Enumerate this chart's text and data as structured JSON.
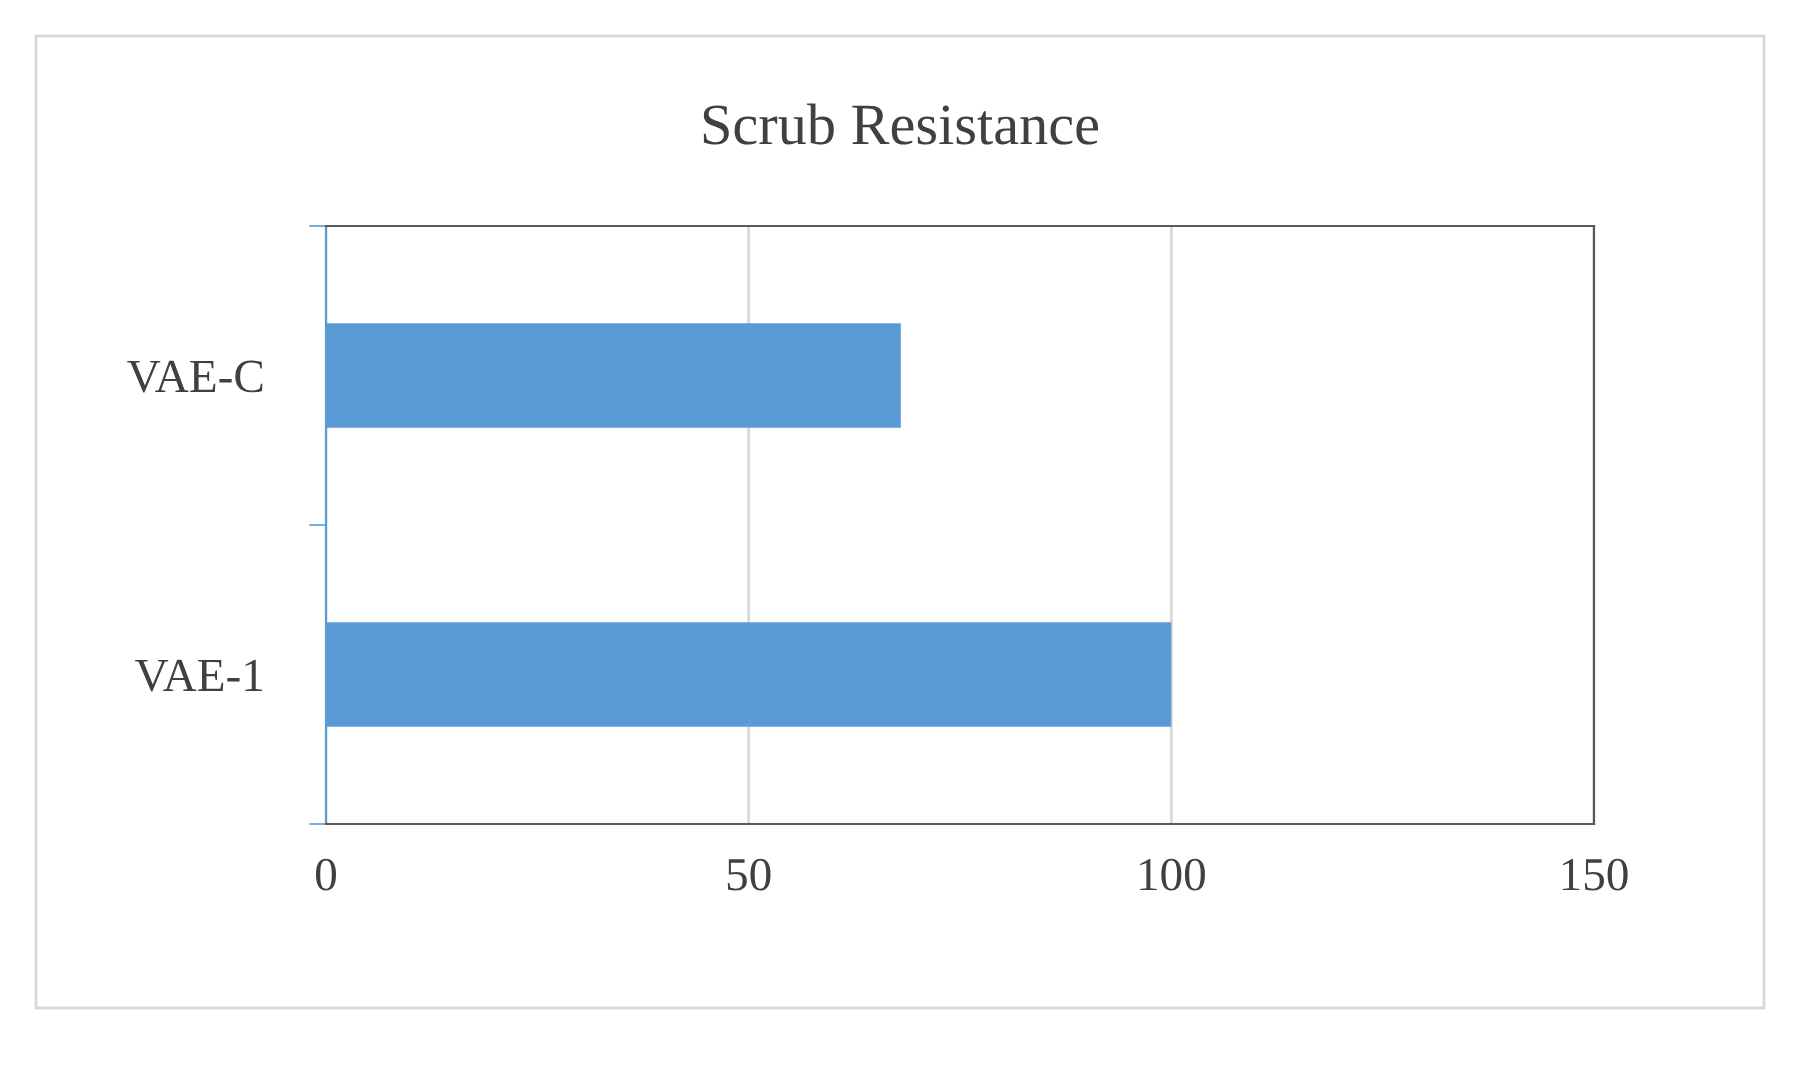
{
  "chart_data": {
    "type": "bar",
    "title": "Scrub Resistance",
    "orientation": "horizontal",
    "categories": [
      "VAE-C",
      "VAE-1"
    ],
    "values": [
      68,
      100
    ],
    "color": "#5b9bd5",
    "xlim": [
      0,
      150
    ],
    "xticks": [
      0,
      50,
      100,
      150
    ],
    "grid": "x"
  }
}
